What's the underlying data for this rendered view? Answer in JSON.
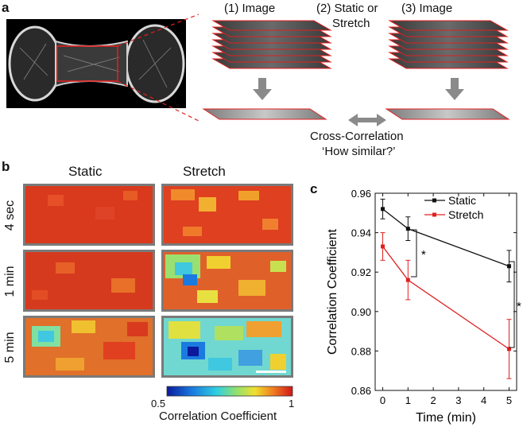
{
  "panels": {
    "a": {
      "letter": "a",
      "steps": [
        "(1) Image",
        "(2) Static or",
        "Stretch",
        "(3) Image"
      ],
      "cross_correlation": [
        "Cross-Correlation",
        "‘How similar?’"
      ]
    },
    "b": {
      "letter": "b",
      "columns": [
        "Static",
        "Stretch"
      ],
      "rows": [
        "4 sec",
        "1 min",
        "5 min"
      ],
      "colorbar": {
        "min_label": "0.5",
        "max_label": "1",
        "title": "Correlation Coefficient"
      }
    },
    "c": {
      "letter": "c"
    }
  },
  "colors": {
    "static": "#111111",
    "stretch": "#e02020",
    "outline": "#cc2222",
    "arrow": "#8a8a8a"
  },
  "chart_data": {
    "type": "line",
    "title": "",
    "xlabel": "Time (min)",
    "ylabel": "Correlation Coefficient",
    "xlim": [
      -0.3,
      5.3
    ],
    "ylim": [
      0.86,
      0.96
    ],
    "xticks": [
      "0",
      "1",
      "2",
      "3",
      "4",
      "5"
    ],
    "yticks": [
      "0.86",
      "0.88",
      "0.90",
      "0.92",
      "0.94",
      "0.96"
    ],
    "legend_position": "top-right",
    "series": [
      {
        "name": "Static",
        "x": [
          0,
          1,
          5
        ],
        "y": [
          0.952,
          0.942,
          0.923
        ],
        "err": [
          0.005,
          0.006,
          0.008
        ]
      },
      {
        "name": "Stretch",
        "x": [
          0,
          1,
          5
        ],
        "y": [
          0.933,
          0.916,
          0.881
        ],
        "err": [
          0.007,
          0.01,
          0.015
        ]
      }
    ],
    "annotations": [
      "*",
      "*"
    ]
  }
}
